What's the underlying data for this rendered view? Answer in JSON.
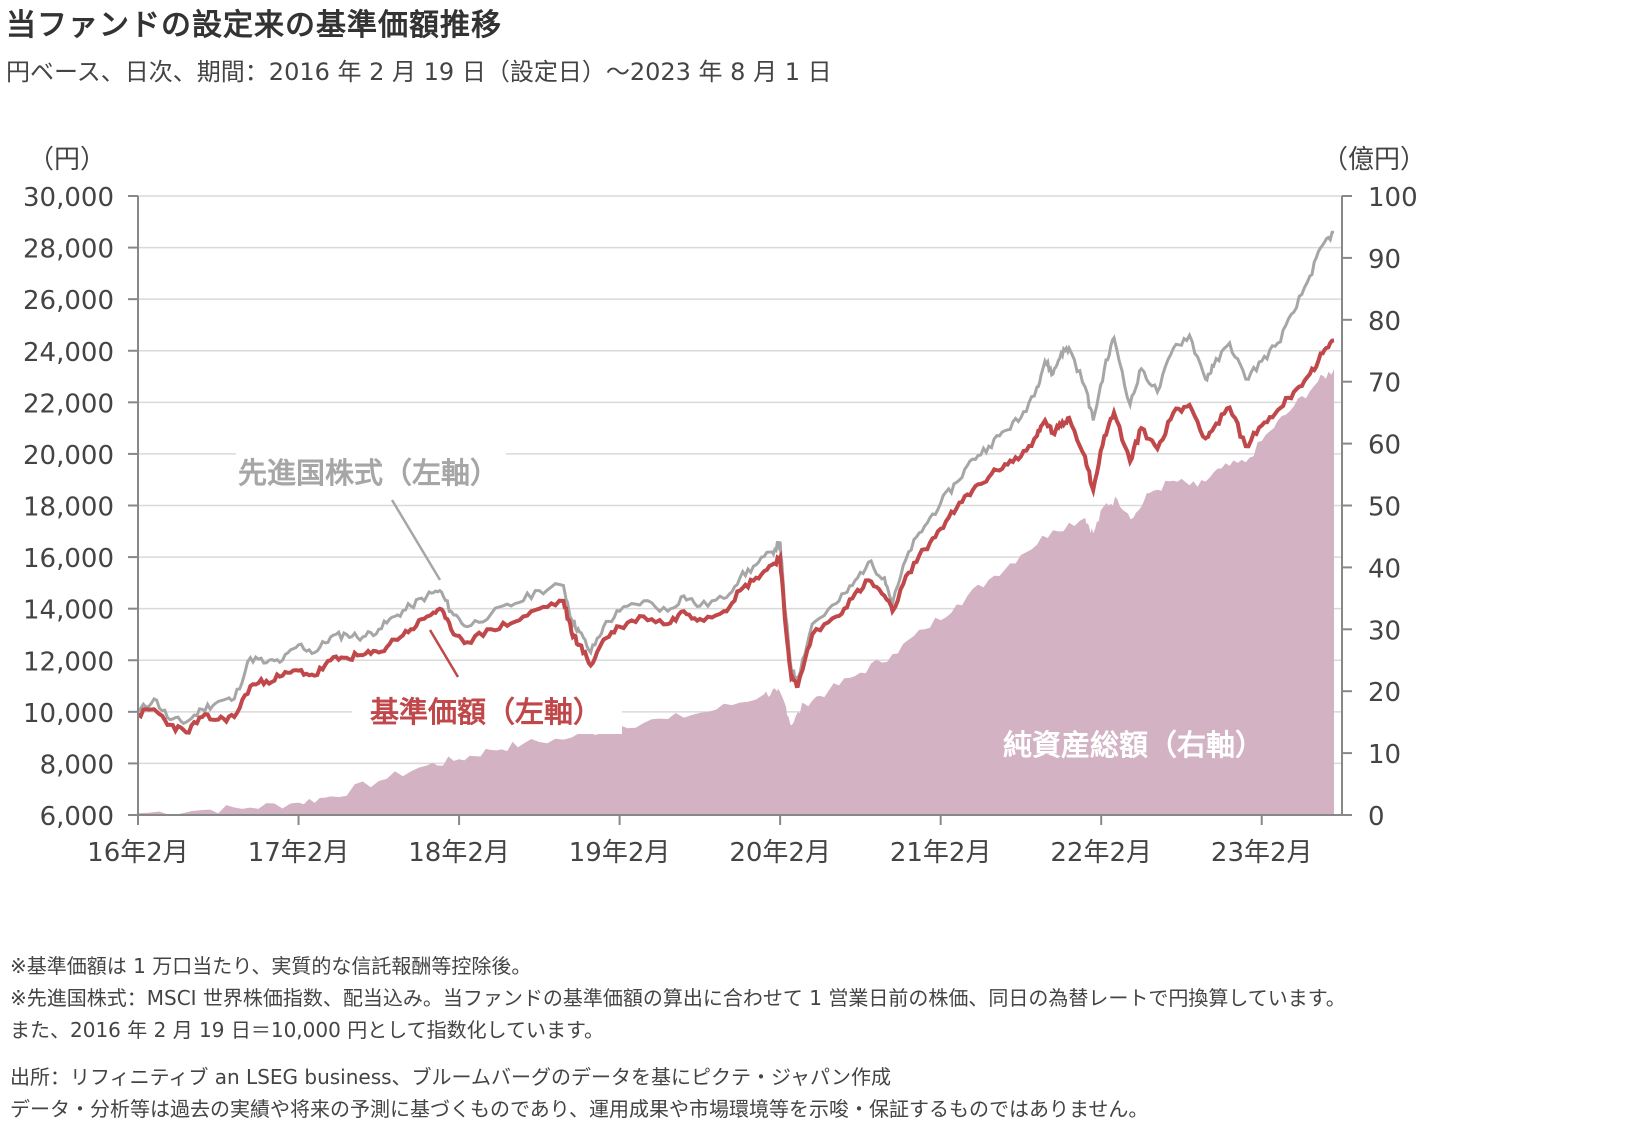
{
  "header": {
    "title": "当ファンドの設定来の基準価額推移",
    "subtitle": "円ベース、日次、期間：2016 年 2 月 19 日（設定日）～2023 年 8 月 1 日"
  },
  "notes": [
    "※基準価額は 1 万口当たり、実質的な信託報酬等控除後。",
    "※先進国株式：MSCI 世界株価指数、配当込み。当ファンドの基準価額の算出に合わせて 1 営業日前の株価、同日の為替レートで円換算しています。",
    "また、2016 年 2 月 19 日＝10,000 円として指数化しています。"
  ],
  "source": [
    "出所：リフィニティブ an LSEG business、ブルームバーグのデータを基にピクテ・ジャパン作成",
    "データ・分析等は過去の実績や将来の予測に基づくものであり、運用成果や市場環境等を示唆・保証するものではありません。"
  ],
  "colors": {
    "nav": "#c0484a",
    "index": "#a6a6a6",
    "aum": "#d2b2c3",
    "grid": "#d9d9d9",
    "axis": "#888888"
  },
  "chart_data": {
    "type": "line",
    "left_axis": {
      "unit_label": "（円）",
      "range": [
        6000,
        30000
      ],
      "ticks": [
        "30,000",
        "28,000",
        "26,000",
        "24,000",
        "22,000",
        "20,000",
        "18,000",
        "16,000",
        "14,000",
        "12,000",
        "10,000",
        "8,000",
        "6,000"
      ]
    },
    "right_axis": {
      "unit_label": "（億円）",
      "range": [
        0,
        100
      ],
      "ticks": [
        "100",
        "90",
        "80",
        "70",
        "60",
        "50",
        "40",
        "30",
        "20",
        "10",
        "0"
      ]
    },
    "x_axis": {
      "range": [
        2016.1,
        2023.6
      ],
      "ticks": [
        {
          "label": "16年2月",
          "t": 2016.1
        },
        {
          "label": "17年2月",
          "t": 2017.1
        },
        {
          "label": "18年2月",
          "t": 2018.1
        },
        {
          "label": "19年2月",
          "t": 2019.1
        },
        {
          "label": "20年2月",
          "t": 2020.1
        },
        {
          "label": "21年2月",
          "t": 2021.1
        },
        {
          "label": "22年2月",
          "t": 2022.1
        },
        {
          "label": "23年2月",
          "t": 2023.1
        }
      ]
    },
    "series": [
      {
        "name": "先進国株式（左軸）",
        "axis": "left",
        "kind": "line",
        "points": [
          [
            2016.1,
            10000
          ],
          [
            2016.2,
            10500
          ],
          [
            2016.3,
            9700
          ],
          [
            2016.4,
            9600
          ],
          [
            2016.5,
            10100
          ],
          [
            2016.6,
            10400
          ],
          [
            2016.7,
            10500
          ],
          [
            2016.8,
            12100
          ],
          [
            2016.9,
            11900
          ],
          [
            2017.0,
            12000
          ],
          [
            2017.1,
            12600
          ],
          [
            2017.2,
            12300
          ],
          [
            2017.3,
            12900
          ],
          [
            2017.4,
            13000
          ],
          [
            2017.5,
            12900
          ],
          [
            2017.6,
            13200
          ],
          [
            2017.7,
            13700
          ],
          [
            2017.8,
            14100
          ],
          [
            2017.9,
            14500
          ],
          [
            2017.98,
            14700
          ],
          [
            2018.05,
            13900
          ],
          [
            2018.15,
            13300
          ],
          [
            2018.3,
            13800
          ],
          [
            2018.45,
            14200
          ],
          [
            2018.6,
            14700
          ],
          [
            2018.75,
            14900
          ],
          [
            2018.8,
            13600
          ],
          [
            2018.85,
            13100
          ],
          [
            2018.92,
            12300
          ],
          [
            2019.0,
            13300
          ],
          [
            2019.1,
            13900
          ],
          [
            2019.25,
            14300
          ],
          [
            2019.4,
            13900
          ],
          [
            2019.5,
            14500
          ],
          [
            2019.6,
            14100
          ],
          [
            2019.75,
            14400
          ],
          [
            2019.85,
            15200
          ],
          [
            2019.95,
            15700
          ],
          [
            2020.05,
            16200
          ],
          [
            2020.1,
            16600
          ],
          [
            2020.13,
            14000
          ],
          [
            2020.17,
            11600
          ],
          [
            2020.21,
            11300
          ],
          [
            2020.3,
            13400
          ],
          [
            2020.45,
            14200
          ],
          [
            2020.55,
            14900
          ],
          [
            2020.65,
            15800
          ],
          [
            2020.75,
            15200
          ],
          [
            2020.8,
            14200
          ],
          [
            2020.9,
            16200
          ],
          [
            2021.0,
            17200
          ],
          [
            2021.1,
            18100
          ],
          [
            2021.2,
            18900
          ],
          [
            2021.3,
            19800
          ],
          [
            2021.4,
            20300
          ],
          [
            2021.5,
            20900
          ],
          [
            2021.6,
            21400
          ],
          [
            2021.7,
            22600
          ],
          [
            2021.75,
            23600
          ],
          [
            2021.8,
            23100
          ],
          [
            2021.85,
            23900
          ],
          [
            2021.9,
            24100
          ],
          [
            2022.0,
            22600
          ],
          [
            2022.05,
            21300
          ],
          [
            2022.12,
            23300
          ],
          [
            2022.18,
            24500
          ],
          [
            2022.28,
            21900
          ],
          [
            2022.35,
            23300
          ],
          [
            2022.45,
            22400
          ],
          [
            2022.55,
            24100
          ],
          [
            2022.65,
            24600
          ],
          [
            2022.75,
            22900
          ],
          [
            2022.8,
            23400
          ],
          [
            2022.9,
            24300
          ],
          [
            2023.0,
            22900
          ],
          [
            2023.1,
            23600
          ],
          [
            2023.2,
            24300
          ],
          [
            2023.3,
            25500
          ],
          [
            2023.4,
            26900
          ],
          [
            2023.48,
            28100
          ],
          [
            2023.55,
            28600
          ]
        ]
      },
      {
        "name": "基準価額（左軸）",
        "axis": "left",
        "kind": "line",
        "points": [
          [
            2016.1,
            9900
          ],
          [
            2016.2,
            10100
          ],
          [
            2016.3,
            9500
          ],
          [
            2016.4,
            9200
          ],
          [
            2016.5,
            9800
          ],
          [
            2016.6,
            9700
          ],
          [
            2016.7,
            9800
          ],
          [
            2016.8,
            11000
          ],
          [
            2016.9,
            11200
          ],
          [
            2017.0,
            11400
          ],
          [
            2017.1,
            11600
          ],
          [
            2017.2,
            11400
          ],
          [
            2017.3,
            12000
          ],
          [
            2017.4,
            12100
          ],
          [
            2017.5,
            12200
          ],
          [
            2017.6,
            12300
          ],
          [
            2017.7,
            12800
          ],
          [
            2017.8,
            13200
          ],
          [
            2017.9,
            13700
          ],
          [
            2017.98,
            14000
          ],
          [
            2018.05,
            13200
          ],
          [
            2018.15,
            12700
          ],
          [
            2018.3,
            13200
          ],
          [
            2018.45,
            13500
          ],
          [
            2018.6,
            14000
          ],
          [
            2018.75,
            14300
          ],
          [
            2018.8,
            13100
          ],
          [
            2018.85,
            12600
          ],
          [
            2018.92,
            11800
          ],
          [
            2019.0,
            12800
          ],
          [
            2019.1,
            13300
          ],
          [
            2019.25,
            13700
          ],
          [
            2019.4,
            13400
          ],
          [
            2019.5,
            13900
          ],
          [
            2019.6,
            13600
          ],
          [
            2019.75,
            13900
          ],
          [
            2019.85,
            14700
          ],
          [
            2019.95,
            15200
          ],
          [
            2020.05,
            15700
          ],
          [
            2020.1,
            16000
          ],
          [
            2020.13,
            13600
          ],
          [
            2020.17,
            11300
          ],
          [
            2020.21,
            11000
          ],
          [
            2020.3,
            13000
          ],
          [
            2020.45,
            13700
          ],
          [
            2020.55,
            14400
          ],
          [
            2020.65,
            15100
          ],
          [
            2020.75,
            14500
          ],
          [
            2020.8,
            13900
          ],
          [
            2020.9,
            15400
          ],
          [
            2021.0,
            16300
          ],
          [
            2021.1,
            17100
          ],
          [
            2021.2,
            17900
          ],
          [
            2021.3,
            18600
          ],
          [
            2021.4,
            19100
          ],
          [
            2021.5,
            19600
          ],
          [
            2021.6,
            19900
          ],
          [
            2021.7,
            20700
          ],
          [
            2021.75,
            21300
          ],
          [
            2021.8,
            20800
          ],
          [
            2021.85,
            21100
          ],
          [
            2021.9,
            21400
          ],
          [
            2022.0,
            19900
          ],
          [
            2022.05,
            18600
          ],
          [
            2022.12,
            20700
          ],
          [
            2022.18,
            21600
          ],
          [
            2022.28,
            19700
          ],
          [
            2022.35,
            21000
          ],
          [
            2022.45,
            20200
          ],
          [
            2022.55,
            21600
          ],
          [
            2022.65,
            21900
          ],
          [
            2022.75,
            20600
          ],
          [
            2022.8,
            21000
          ],
          [
            2022.9,
            21800
          ],
          [
            2023.0,
            20300
          ],
          [
            2023.1,
            21100
          ],
          [
            2023.2,
            21700
          ],
          [
            2023.3,
            22400
          ],
          [
            2023.4,
            23100
          ],
          [
            2023.48,
            23900
          ],
          [
            2023.55,
            24400
          ]
        ]
      },
      {
        "name": "純資産総額（右軸）",
        "axis": "right",
        "kind": "area",
        "points": [
          [
            2016.1,
            0.3
          ],
          [
            2016.5,
            0.8
          ],
          [
            2016.8,
            1.2
          ],
          [
            2017.1,
            2.0
          ],
          [
            2017.3,
            3.0
          ],
          [
            2017.6,
            5.5
          ],
          [
            2017.9,
            8.0
          ],
          [
            2018.1,
            9.0
          ],
          [
            2018.3,
            10.5
          ],
          [
            2018.5,
            11.5
          ],
          [
            2018.8,
            12.5
          ],
          [
            2019.1,
            14.5
          ],
          [
            2019.4,
            15.5
          ],
          [
            2019.7,
            17.0
          ],
          [
            2020.0,
            19.5
          ],
          [
            2020.08,
            20.0
          ],
          [
            2020.13,
            18.0
          ],
          [
            2020.17,
            14.5
          ],
          [
            2020.25,
            18.0
          ],
          [
            2020.4,
            20.0
          ],
          [
            2020.6,
            23.0
          ],
          [
            2020.8,
            26.0
          ],
          [
            2021.0,
            30.0
          ],
          [
            2021.2,
            34.0
          ],
          [
            2021.4,
            38.0
          ],
          [
            2021.6,
            42.0
          ],
          [
            2021.8,
            46.0
          ],
          [
            2022.0,
            48.0
          ],
          [
            2022.05,
            45.5
          ],
          [
            2022.12,
            50.0
          ],
          [
            2022.2,
            51.0
          ],
          [
            2022.3,
            48.0
          ],
          [
            2022.4,
            52.0
          ],
          [
            2022.55,
            54.0
          ],
          [
            2022.7,
            53.0
          ],
          [
            2022.85,
            56.0
          ],
          [
            2023.0,
            57.0
          ],
          [
            2023.15,
            62.0
          ],
          [
            2023.3,
            66.0
          ],
          [
            2023.45,
            70.0
          ],
          [
            2023.55,
            72.0
          ]
        ]
      }
    ],
    "annotations": [
      {
        "text": "先進国株式（左軸）",
        "target": "index"
      },
      {
        "text": "基準価額（左軸）",
        "target": "nav"
      },
      {
        "text": "純資産総額（右軸）",
        "target": "aum"
      }
    ]
  }
}
